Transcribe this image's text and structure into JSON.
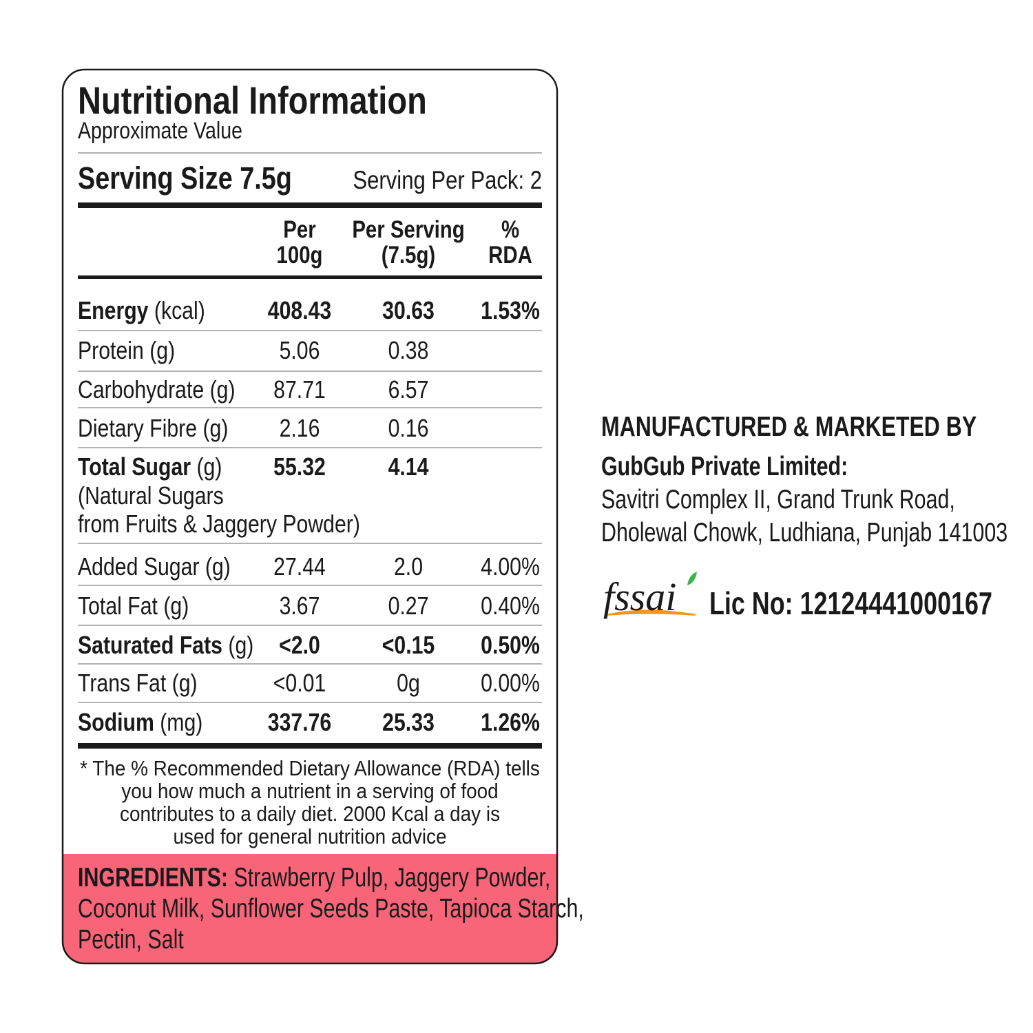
{
  "header": {
    "title": "Nutritional Information",
    "subtitle": "Approximate Value",
    "serving_size": "Serving Size 7.5g",
    "serving_per_pack": "Serving Per Pack: 2"
  },
  "table": {
    "columns": [
      [
        "Per",
        "100g"
      ],
      [
        "Per Serving",
        "(7.5g)"
      ],
      [
        "%",
        "RDA"
      ]
    ],
    "rows": [
      {
        "name": "Energy",
        "unit": "(kcal)",
        "bold": true,
        "values": [
          "408.43",
          "30.63",
          "1.53%"
        ]
      },
      {
        "name": "Protein",
        "unit": "(g)",
        "bold": false,
        "values": [
          "5.06",
          "0.38",
          ""
        ]
      },
      {
        "name": "Carbohydrate",
        "unit": "(g)",
        "bold": false,
        "values": [
          "87.71",
          "6.57",
          ""
        ]
      },
      {
        "name": "Dietary Fibre",
        "unit": "(g)",
        "bold": false,
        "values": [
          "2.16",
          "0.16",
          ""
        ]
      },
      {
        "name": "Total Sugar",
        "unit": "(g)",
        "bold": true,
        "values": [
          "55.32",
          "4.14",
          ""
        ],
        "note": [
          "(Natural Sugars",
          "from Fruits & Jaggery Powder)"
        ]
      },
      {
        "name": "Added Sugar",
        "unit": "(g)",
        "bold": false,
        "values": [
          "27.44",
          "2.0",
          "4.00%"
        ]
      },
      {
        "name": "Total Fat",
        "unit": "(g)",
        "bold": false,
        "values": [
          "3.67",
          "0.27",
          "0.40%"
        ]
      },
      {
        "name": "Saturated Fats",
        "unit": "(g)",
        "bold": true,
        "values": [
          "<2.0",
          "<0.15",
          "0.50%"
        ]
      },
      {
        "name": "Trans Fat",
        "unit": "(g)",
        "bold": false,
        "values": [
          "<0.01",
          "0g",
          "0.00%"
        ]
      },
      {
        "name": "Sodium",
        "unit": "(mg)",
        "bold": true,
        "values": [
          "337.76",
          "25.33",
          "1.26%"
        ]
      }
    ]
  },
  "footnote": [
    "* The %  Recommended Dietary Allowance (RDA) tells",
    "you how much a nutrient in a serving of food",
    "contributes to a daily diet. 2000 Kcal a day is",
    "used for general nutrition advice"
  ],
  "ingredients": {
    "label": "INGREDIENTS:",
    "lines": [
      " Strawberry Pulp, Jaggery Powder,",
      "Coconut Milk, Sunflower Seeds Paste, Tapioca Starch,",
      "Pectin, Salt"
    ]
  },
  "manufacturer": {
    "heading": "MANUFACTURED & MARKETED BY",
    "company": "GubGub Private Limited:",
    "address": [
      "Savitri Complex II, Grand Trunk Road,",
      "Dholewal Chowk, Ludhiana, Punjab 141003"
    ]
  },
  "license": {
    "logo": "fssai",
    "text": "Lic No: 12124441000167"
  }
}
